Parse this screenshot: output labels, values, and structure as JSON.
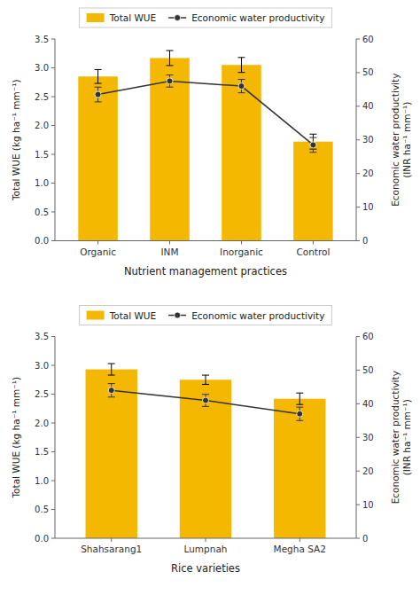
{
  "chart_data": [
    {
      "type": "bar",
      "xlabel": "Nutrient management practices",
      "ylabel": "Total WUE (kg ha⁻¹ mm⁻¹)",
      "y2label": "Economic water productivity\n(INR ha⁻¹ mm⁻¹)",
      "categories": [
        "Organic",
        "INM",
        "Inorganic",
        "Control"
      ],
      "series": [
        {
          "name": "Total WUE",
          "type": "bar",
          "color": "#F5B800",
          "values": [
            2.85,
            3.17,
            3.05,
            1.72
          ],
          "errors": [
            0.12,
            0.13,
            0.13,
            0.13
          ]
        },
        {
          "name": "Economic water productivity",
          "type": "line",
          "axis": "y2",
          "color": "#333333",
          "marker": "circle",
          "values": [
            43.5,
            47.5,
            46.0,
            28.5
          ],
          "errors": [
            2.2,
            1.8,
            2.0,
            2.2
          ]
        }
      ],
      "ylim": [
        0,
        3.5
      ],
      "yticks": [
        {
          "value": 0,
          "label": "0.0"
        },
        0.5,
        {
          "value": 1,
          "label": "1.0"
        },
        1.5,
        {
          "value": 2,
          "label": "2.0"
        },
        2.5,
        {
          "value": 3,
          "label": "3.0"
        },
        3.5
      ],
      "y2lim": [
        0,
        60
      ],
      "y2ticks": [
        0,
        10,
        20,
        30,
        40,
        50,
        60
      ],
      "legend": "top",
      "grid": false
    },
    {
      "type": "bar",
      "xlabel": "Rice varieties",
      "ylabel": "Total WUE (kg ha⁻¹ mm⁻¹)",
      "y2label": "Economic water productivity\n(INR ha⁻¹ mm⁻¹)",
      "categories": [
        "Shahsarang1",
        "Lumpnah",
        "Megha SA2"
      ],
      "series": [
        {
          "name": "Total WUE",
          "type": "bar",
          "color": "#F5B800",
          "values": [
            2.93,
            2.75,
            2.42
          ],
          "errors": [
            0.1,
            0.08,
            0.1
          ]
        },
        {
          "name": "Economic water productivity",
          "type": "line",
          "axis": "y2",
          "color": "#333333",
          "marker": "circle",
          "values": [
            44,
            41,
            37
          ],
          "errors": [
            2.0,
            1.8,
            2.0
          ]
        }
      ],
      "ylim": [
        0,
        3.5
      ],
      "yticks": [
        {
          "value": 0,
          "label": "0.0"
        },
        0.5,
        {
          "value": 1,
          "label": "1.0"
        },
        1.5,
        {
          "value": 2,
          "label": "2.0"
        },
        2.5,
        {
          "value": 3,
          "label": "3.0"
        },
        3.5
      ],
      "y2lim": [
        0,
        60
      ],
      "y2ticks": [
        0,
        10,
        20,
        30,
        40,
        50,
        60
      ],
      "legend": "top",
      "grid": false
    }
  ]
}
